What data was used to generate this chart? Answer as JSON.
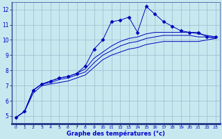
{
  "xlabel": "Graphe des températures (°c)",
  "xlim": [
    -0.5,
    23.5
  ],
  "ylim": [
    4.5,
    12.5
  ],
  "xticks": [
    0,
    1,
    2,
    3,
    4,
    5,
    6,
    7,
    8,
    9,
    10,
    11,
    12,
    13,
    14,
    15,
    16,
    17,
    18,
    19,
    20,
    21,
    22,
    23
  ],
  "yticks": [
    5,
    6,
    7,
    8,
    9,
    10,
    11,
    12
  ],
  "bg_color": "#c8e8f0",
  "line_color": "#0000bb",
  "grid_color": "#99bbcc",
  "spine_color": "#334499",
  "label_color": "#0000cc",
  "series": {
    "main": {
      "x": [
        0,
        1,
        2,
        3,
        4,
        5,
        6,
        7,
        8,
        9,
        10,
        11,
        12,
        13,
        14,
        15,
        16,
        17,
        18,
        19,
        20,
        21,
        22,
        23
      ],
      "y": [
        4.9,
        5.3,
        6.7,
        7.1,
        7.3,
        7.5,
        7.6,
        7.8,
        8.3,
        9.4,
        10.0,
        11.2,
        11.3,
        11.5,
        10.5,
        12.2,
        11.7,
        11.2,
        10.9,
        10.6,
        10.5,
        10.5,
        10.2,
        10.2
      ],
      "marker": "D",
      "markersize": 2.5
    },
    "line2": {
      "x": [
        0,
        1,
        2,
        3,
        4,
        5,
        6,
        7,
        8,
        9,
        10,
        11,
        12,
        13,
        14,
        15,
        16,
        17,
        18,
        19,
        20,
        21,
        22,
        23
      ],
      "y": [
        4.9,
        5.3,
        6.7,
        7.1,
        7.3,
        7.5,
        7.6,
        7.8,
        8.1,
        8.8,
        9.2,
        9.6,
        9.9,
        10.1,
        10.2,
        10.4,
        10.5,
        10.5,
        10.5,
        10.5,
        10.5,
        10.4,
        10.3,
        10.2
      ]
    },
    "line3": {
      "x": [
        0,
        1,
        2,
        3,
        4,
        5,
        6,
        7,
        8,
        9,
        10,
        11,
        12,
        13,
        14,
        15,
        16,
        17,
        18,
        19,
        20,
        21,
        22,
        23
      ],
      "y": [
        4.9,
        5.3,
        6.7,
        7.1,
        7.2,
        7.4,
        7.5,
        7.7,
        7.9,
        8.5,
        9.0,
        9.3,
        9.6,
        9.8,
        9.9,
        10.1,
        10.2,
        10.3,
        10.3,
        10.3,
        10.3,
        10.2,
        10.2,
        10.1
      ]
    },
    "line4": {
      "x": [
        0,
        1,
        2,
        3,
        4,
        5,
        6,
        7,
        8,
        9,
        10,
        11,
        12,
        13,
        14,
        15,
        16,
        17,
        18,
        19,
        20,
        21,
        22,
        23
      ],
      "y": [
        4.9,
        5.3,
        6.5,
        7.0,
        7.1,
        7.2,
        7.3,
        7.5,
        7.7,
        8.2,
        8.7,
        9.0,
        9.2,
        9.4,
        9.5,
        9.7,
        9.8,
        9.9,
        9.9,
        9.9,
        9.9,
        9.9,
        10.0,
        10.1
      ]
    }
  }
}
